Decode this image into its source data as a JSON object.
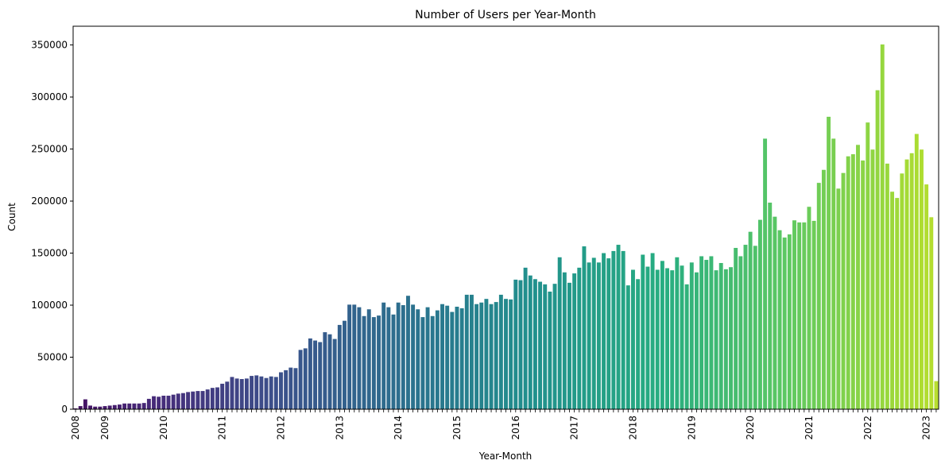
{
  "chart_data": {
    "type": "bar",
    "title": "Number of Users per Year-Month",
    "xlabel": "Year-Month",
    "ylabel": "Count",
    "ylim": [
      0,
      368000
    ],
    "yticks": [
      0,
      50000,
      100000,
      150000,
      200000,
      250000,
      300000,
      350000
    ],
    "ytick_labels": [
      "0",
      "50000",
      "100000",
      "150000",
      "200000",
      "250000",
      "300000",
      "350000"
    ],
    "start_month": "2008-07",
    "end_month": "2023-03",
    "year_labels": [
      "2008",
      "2009",
      "2010",
      "2011",
      "2012",
      "2013",
      "2014",
      "2015",
      "2016",
      "2017",
      "2018",
      "2019",
      "2020",
      "2021",
      "2022",
      "2023"
    ],
    "colormap": "viridis",
    "grid": false,
    "legend": false,
    "values": [
      800,
      3000,
      9500,
      3500,
      2500,
      2500,
      3000,
      3500,
      4000,
      4500,
      5500,
      5500,
      5500,
      5500,
      6000,
      10000,
      12500,
      12000,
      13000,
      13000,
      14000,
      15000,
      15500,
      16500,
      17000,
      17500,
      17500,
      19000,
      20500,
      21000,
      24500,
      26500,
      31000,
      29500,
      29000,
      29500,
      32000,
      32500,
      31500,
      30000,
      31500,
      31000,
      35500,
      37500,
      40000,
      39500,
      57000,
      58500,
      68000,
      66000,
      64500,
      74000,
      72000,
      67500,
      81000,
      85000,
      100500,
      100500,
      98000,
      89500,
      96000,
      88500,
      90000,
      102500,
      98000,
      91000,
      102500,
      100000,
      109000,
      100500,
      96000,
      88500,
      98000,
      89500,
      95000,
      101000,
      99500,
      93500,
      98500,
      97000,
      110000,
      110000,
      101000,
      102500,
      106000,
      101000,
      103000,
      110000,
      106000,
      105500,
      124500,
      124000,
      136000,
      128500,
      125000,
      122500,
      120000,
      113000,
      120500,
      146000,
      131500,
      121500,
      130500,
      136000,
      156500,
      141000,
      145500,
      141000,
      150000,
      145000,
      152000,
      158000,
      152000,
      119000,
      134000,
      125000,
      148500,
      137000,
      150000,
      134000,
      142500,
      135500,
      133500,
      146000,
      138000,
      120000,
      141000,
      131500,
      147000,
      143500,
      147000,
      133500,
      140500,
      134500,
      136500,
      155000,
      147000,
      158000,
      170500,
      157000,
      182000,
      260000,
      198500,
      185000,
      172000,
      165000,
      168000,
      181500,
      179500,
      179500,
      194500,
      181000,
      217500,
      230000,
      281000,
      260000,
      212000,
      227000,
      243000,
      245000,
      254000,
      239000,
      275500,
      249500,
      306500,
      350500,
      236000,
      209000,
      203000,
      226500,
      240000,
      246000,
      264500,
      249500,
      216000,
      184500,
      27000
    ]
  }
}
